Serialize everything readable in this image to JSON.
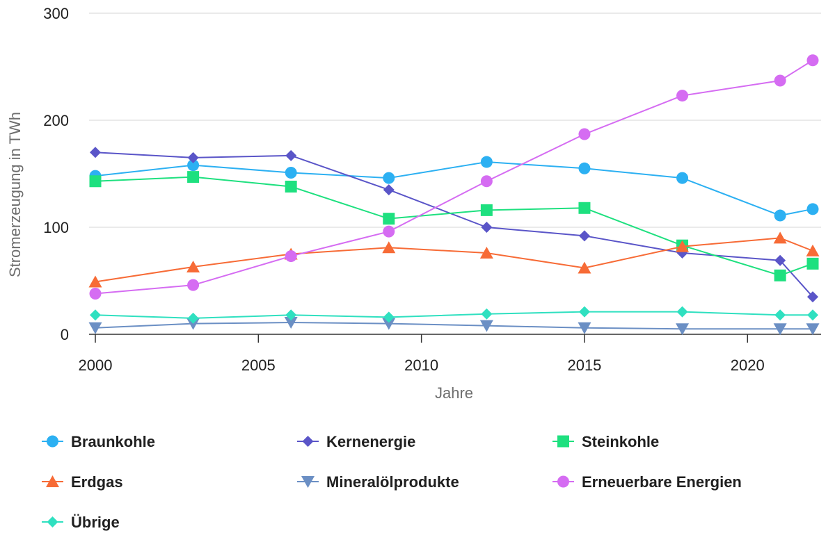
{
  "chart_data": {
    "type": "line",
    "xlabel": "Jahre",
    "ylabel": "Stromerzeugung in TWh",
    "xlim": [
      2000,
      2022
    ],
    "ylim": [
      0,
      300
    ],
    "xticks": [
      "2000",
      "2005",
      "2010",
      "2015",
      "2020"
    ],
    "yticks": [
      "0",
      "100",
      "200",
      "300"
    ],
    "grid": "horizontal",
    "legend_position": "bottom",
    "x": [
      2000,
      2003,
      2006,
      2009,
      2012,
      2015,
      2018,
      2021,
      2022
    ],
    "series": [
      {
        "name": "Braunkohle",
        "color": "#2cb0f2",
        "marker": "circle",
        "values": [
          148,
          158,
          151,
          146,
          161,
          155,
          146,
          111,
          117
        ]
      },
      {
        "name": "Kernenergie",
        "color": "#5a55c8",
        "marker": "diamond",
        "values": [
          170,
          165,
          167,
          135,
          100,
          92,
          76,
          69,
          35
        ]
      },
      {
        "name": "Steinkohle",
        "color": "#1ee07f",
        "marker": "square",
        "values": [
          143,
          147,
          138,
          108,
          116,
          118,
          83,
          55,
          66
        ]
      },
      {
        "name": "Erdgas",
        "color": "#f76b36",
        "marker": "triangle",
        "values": [
          49,
          63,
          75,
          81,
          76,
          62,
          82,
          90,
          78
        ]
      },
      {
        "name": "Mineralölprodukte",
        "color": "#6b8fc4",
        "marker": "triangle-down",
        "values": [
          6,
          10,
          11,
          10,
          8,
          6,
          5,
          5,
          5
        ]
      },
      {
        "name": "Erneuerbare Energien",
        "color": "#d56cf2",
        "marker": "circle",
        "values": [
          38,
          46,
          73,
          96,
          143,
          187,
          223,
          237,
          256
        ]
      },
      {
        "name": "Übrige",
        "color": "#2fe0c0",
        "marker": "diamond",
        "values": [
          18,
          15,
          18,
          16,
          19,
          21,
          21,
          18,
          18
        ]
      }
    ]
  }
}
